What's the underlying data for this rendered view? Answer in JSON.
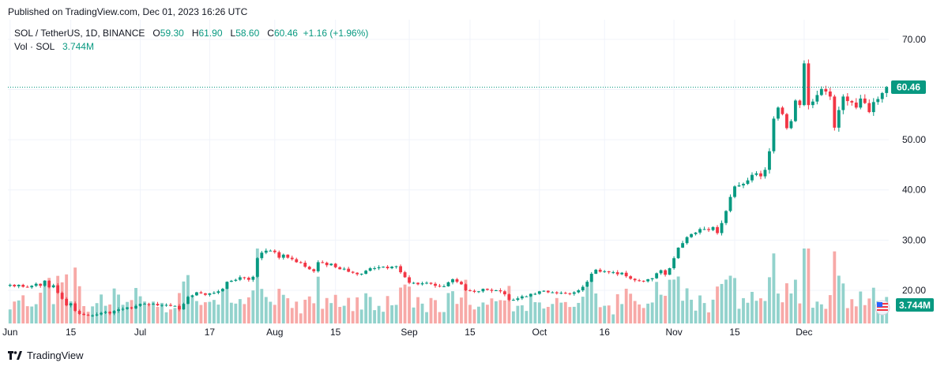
{
  "header": {
    "published": "Published on TradingView.com, Dec 01, 2023 16:26 UTC"
  },
  "legend": {
    "symbol": "SOL / TetherUS, 1D, BINANCE",
    "o_label": "O",
    "o_value": "59.30",
    "h_label": "H",
    "h_value": "61.90",
    "l_label": "L",
    "l_value": "58.60",
    "c_label": "C",
    "c_value": "60.46",
    "change": "+1.16 (+1.96%)",
    "vol_label": "Vol · SOL",
    "vol_value": "3.744M"
  },
  "price_label": "60.46",
  "volume_label": "3.744M",
  "footer": {
    "brand": "TradingView"
  },
  "colors": {
    "up": "#089981",
    "down": "#f23645",
    "vol_up": "#92d2cc",
    "vol_down": "#f7a9a7",
    "grid": "#f0f3fa",
    "last_price": "#089981"
  },
  "chart_data": {
    "type": "candlestick",
    "y_ticks": [
      "70.00",
      "60.00",
      "50.00",
      "40.00",
      "30.00",
      "20.00"
    ],
    "x_ticks": [
      "Jun",
      "15",
      "Jul",
      "17",
      "Aug",
      "15",
      "Sep",
      "15",
      "Oct",
      "16",
      "Nov",
      "15",
      "Dec"
    ],
    "ylim": [
      13.4,
      73.9
    ],
    "last_close": 60.46,
    "start_date": "2023-06-01",
    "grid": true,
    "series": [
      {
        "name": "SOL / TetherUS",
        "closes": [
          21.1,
          20.8,
          21.1,
          20.7,
          20.6,
          20.9,
          21.3,
          20.9,
          21.9,
          20.6,
          21.0,
          19.5,
          18.3,
          17.0,
          17.4,
          15.9,
          15.3,
          15.1,
          15.0,
          15.0,
          15.2,
          15.5,
          15.7,
          15.4,
          15.9,
          16.2,
          16.3,
          16.6,
          16.4,
          16.9,
          17.3,
          17.3,
          17.2,
          17.3,
          17.0,
          17.1,
          17.1,
          16.9,
          16.9,
          16.2,
          17.3,
          18.7,
          19.0,
          19.6,
          19.4,
          19.1,
          19.4,
          19.5,
          19.8,
          20.3,
          21.7,
          21.9,
          22.1,
          22.6,
          22.5,
          22.1,
          22.7,
          26.4,
          27.5,
          27.9,
          27.9,
          27.6,
          26.5,
          27.1,
          26.5,
          26.2,
          25.6,
          25.5,
          24.7,
          24.2,
          23.8,
          25.6,
          25.5,
          25.0,
          25.3,
          24.6,
          24.2,
          24.3,
          23.7,
          23.5,
          23.2,
          23.3,
          23.9,
          24.4,
          24.4,
          24.6,
          24.7,
          24.4,
          24.7,
          24.8,
          23.6,
          22.6,
          21.5,
          21.5,
          21.2,
          21.4,
          21.5,
          21.3,
          20.9,
          20.8,
          20.8,
          21.6,
          22.2,
          21.7,
          21.2,
          20.0,
          19.9,
          19.7,
          19.8,
          20.3,
          20.1,
          19.9,
          20.0,
          19.8,
          19.2,
          18.1,
          18.1,
          18.4,
          18.8,
          18.8,
          19.3,
          19.3,
          19.8,
          19.9,
          19.6,
          19.6,
          19.4,
          19.5,
          19.4,
          19.3,
          19.6,
          20.0,
          20.7,
          21.7,
          23.3,
          24.1,
          23.7,
          23.8,
          23.6,
          23.6,
          23.2,
          23.5,
          22.8,
          22.3,
          22.0,
          21.9,
          21.8,
          22.2,
          22.4,
          23.4,
          24.0,
          23.1,
          24.4,
          26.4,
          28.5,
          29.4,
          30.6,
          31.2,
          31.5,
          32.2,
          32.2,
          32.0,
          32.6,
          31.4,
          33.4,
          35.8,
          38.6,
          40.7,
          40.9,
          41.2,
          41.9,
          43.0,
          43.3,
          42.7,
          44.0,
          47.7,
          54.2,
          56.4,
          55.1,
          52.3,
          53.7,
          57.8,
          56.9,
          65.2,
          56.9,
          57.6,
          58.9,
          60.1,
          59.6,
          58.6,
          52.4,
          55.9,
          58.6,
          57.7,
          57.4,
          56.4,
          58.2,
          57.3,
          55.5,
          57.5,
          58.1,
          59.3,
          60.46
        ]
      }
    ]
  }
}
